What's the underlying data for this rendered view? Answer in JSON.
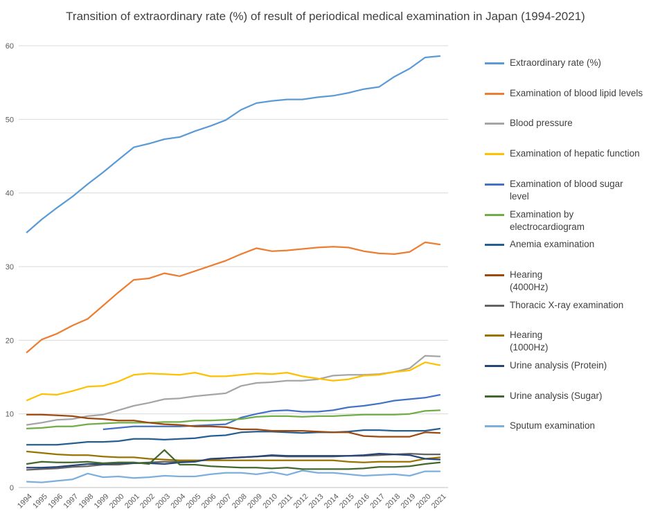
{
  "chart_data": {
    "type": "line",
    "title": "Transition of extraordinary rate (%) of result of periodical medical examination in Japan (1994-2021)",
    "xlabel": "",
    "ylabel": "",
    "ylim": [
      0,
      60
    ],
    "yticks": [
      "0",
      "10",
      "20",
      "30",
      "40",
      "50",
      "60"
    ],
    "grid": true,
    "legend_position": "right",
    "x": [
      "1994",
      "1995",
      "1996",
      "1997",
      "1998",
      "1999",
      "2000",
      "2001",
      "2002",
      "2003",
      "2004",
      "2005",
      "2006",
      "2007",
      "2008",
      "2009",
      "2010",
      "2011",
      "2012",
      "2013",
      "2014",
      "2015",
      "2016",
      "2017",
      "2018",
      "2019",
      "2020",
      "2021"
    ],
    "series": [
      {
        "name": "Extraordinary rate (%)",
        "color": "#5b9bd5",
        "values": [
          34.6,
          36.4,
          38.0,
          39.5,
          41.2,
          42.8,
          44.5,
          46.2,
          46.7,
          47.3,
          47.6,
          48.4,
          49.1,
          49.9,
          51.3,
          52.2,
          52.5,
          52.7,
          52.7,
          53.0,
          53.2,
          53.6,
          54.1,
          54.4,
          55.8,
          56.9,
          58.4,
          58.6
        ]
      },
      {
        "name": "Examination of blood lipid levels",
        "color": "#ed7d31",
        "values": [
          18.3,
          20.1,
          20.9,
          22.0,
          22.9,
          24.7,
          26.5,
          28.2,
          28.4,
          29.1,
          28.7,
          29.4,
          30.1,
          30.8,
          31.7,
          32.5,
          32.1,
          32.2,
          32.4,
          32.6,
          32.7,
          32.6,
          32.1,
          31.8,
          31.7,
          32.0,
          33.3,
          33.0
        ]
      },
      {
        "name": "Blood pressure",
        "color": "#a5a5a5",
        "values": [
          8.5,
          8.8,
          9.2,
          9.3,
          9.7,
          9.9,
          10.5,
          11.1,
          11.5,
          12.0,
          12.1,
          12.4,
          12.6,
          12.8,
          13.8,
          14.2,
          14.3,
          14.5,
          14.5,
          14.7,
          15.2,
          15.3,
          15.3,
          15.4,
          15.7,
          16.2,
          17.9,
          17.8
        ]
      },
      {
        "name": "Examination of hepatic function",
        "color": "#ffc000",
        "values": [
          11.8,
          12.7,
          12.6,
          13.1,
          13.7,
          13.8,
          14.4,
          15.3,
          15.5,
          15.4,
          15.3,
          15.6,
          15.1,
          15.1,
          15.3,
          15.5,
          15.4,
          15.6,
          15.1,
          14.8,
          14.5,
          14.7,
          15.2,
          15.3,
          15.7,
          15.9,
          17.0,
          16.6
        ]
      },
      {
        "name": "Examination of blood sugar level",
        "color": "#4472c4",
        "values": [
          null,
          null,
          null,
          null,
          null,
          7.9,
          8.1,
          8.3,
          8.3,
          8.3,
          8.3,
          8.4,
          8.5,
          8.6,
          9.5,
          10.0,
          10.4,
          10.5,
          10.3,
          10.3,
          10.5,
          10.9,
          11.1,
          11.4,
          11.8,
          12.0,
          12.2,
          12.6
        ]
      },
      {
        "name": "Examination by electrocardiogram",
        "color": "#70ad47",
        "values": [
          8.0,
          8.1,
          8.3,
          8.3,
          8.6,
          8.7,
          8.8,
          8.8,
          8.8,
          8.9,
          8.9,
          9.1,
          9.1,
          9.2,
          9.3,
          9.6,
          9.7,
          9.7,
          9.6,
          9.7,
          9.7,
          9.8,
          9.9,
          9.9,
          9.9,
          10.0,
          10.4,
          10.5
        ]
      },
      {
        "name": "Anemia examination",
        "color": "#255e91",
        "values": [
          5.8,
          5.8,
          5.8,
          6.0,
          6.2,
          6.2,
          6.3,
          6.6,
          6.6,
          6.5,
          6.6,
          6.7,
          7.0,
          7.1,
          7.5,
          7.6,
          7.6,
          7.5,
          7.4,
          7.5,
          7.5,
          7.6,
          7.8,
          7.8,
          7.7,
          7.7,
          7.7,
          8.0
        ]
      },
      {
        "name": "Hearing\n(4000Hz)",
        "color": "#9e480e",
        "values": [
          9.9,
          9.9,
          9.8,
          9.7,
          9.4,
          9.3,
          9.1,
          9.1,
          8.8,
          8.6,
          8.5,
          8.3,
          8.3,
          8.2,
          7.9,
          7.9,
          7.7,
          7.7,
          7.7,
          7.6,
          7.5,
          7.5,
          7.0,
          6.9,
          6.9,
          6.9,
          7.5,
          7.4
        ]
      },
      {
        "name": "Thoracic X-ray examination",
        "color": "#636363",
        "values": [
          2.4,
          2.5,
          2.6,
          2.8,
          2.9,
          3.1,
          3.1,
          3.3,
          3.4,
          3.5,
          3.5,
          3.6,
          3.8,
          4.0,
          4.1,
          4.2,
          4.3,
          4.2,
          4.2,
          4.2,
          4.2,
          4.3,
          4.3,
          4.4,
          4.5,
          4.6,
          4.5,
          4.5
        ]
      },
      {
        "name": "Hearing\n(1000Hz)",
        "color": "#997300",
        "values": [
          4.9,
          4.7,
          4.5,
          4.4,
          4.4,
          4.2,
          4.1,
          4.1,
          3.9,
          3.8,
          3.7,
          3.7,
          3.7,
          3.7,
          3.7,
          3.7,
          3.7,
          3.7,
          3.7,
          3.7,
          3.7,
          3.5,
          3.4,
          3.5,
          3.5,
          3.5,
          3.9,
          4.1
        ]
      },
      {
        "name": "Urine analysis (Protein)",
        "color": "#264478",
        "values": [
          2.7,
          2.7,
          2.8,
          3.0,
          3.2,
          3.2,
          3.3,
          3.3,
          3.3,
          3.2,
          3.4,
          3.5,
          3.9,
          4.0,
          4.1,
          4.2,
          4.4,
          4.3,
          4.3,
          4.3,
          4.3,
          4.3,
          4.4,
          4.6,
          4.5,
          4.4,
          3.9,
          3.8
        ]
      },
      {
        "name": "Urine analysis (Sugar)",
        "color": "#43682b",
        "values": [
          3.2,
          3.5,
          3.4,
          3.4,
          3.5,
          3.3,
          3.4,
          3.4,
          3.2,
          5.1,
          3.1,
          3.1,
          2.9,
          2.8,
          2.7,
          2.7,
          2.6,
          2.7,
          2.5,
          2.5,
          2.5,
          2.5,
          2.6,
          2.8,
          2.8,
          2.9,
          3.2,
          3.4
        ]
      },
      {
        "name": "Sputum examination",
        "color": "#7cafdd",
        "values": [
          0.8,
          0.7,
          0.9,
          1.1,
          1.9,
          1.4,
          1.5,
          1.3,
          1.4,
          1.6,
          1.5,
          1.5,
          1.8,
          2.0,
          2.0,
          1.8,
          2.1,
          1.7,
          2.3,
          2.0,
          2.0,
          1.8,
          1.6,
          1.7,
          1.8,
          1.6,
          2.2,
          2.2
        ]
      }
    ]
  }
}
